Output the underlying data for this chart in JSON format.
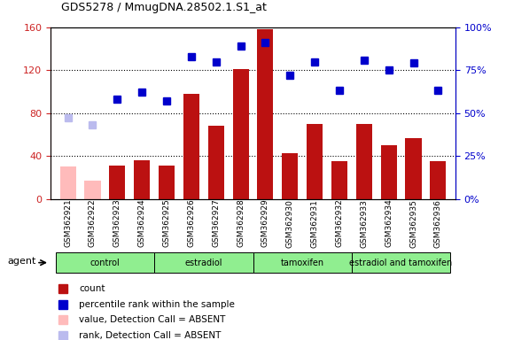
{
  "title": "GDS5278 / MmugDNA.28502.1.S1_at",
  "samples": [
    "GSM362921",
    "GSM362922",
    "GSM362923",
    "GSM362924",
    "GSM362925",
    "GSM362926",
    "GSM362927",
    "GSM362928",
    "GSM362929",
    "GSM362930",
    "GSM362931",
    "GSM362932",
    "GSM362933",
    "GSM362934",
    "GSM362935",
    "GSM362936"
  ],
  "count_values": [
    30,
    17,
    31,
    36,
    31,
    98,
    68,
    121,
    158,
    43,
    70,
    35,
    70,
    50,
    57,
    35
  ],
  "count_absent": [
    true,
    true,
    false,
    false,
    false,
    false,
    false,
    false,
    false,
    false,
    false,
    false,
    false,
    false,
    false,
    false
  ],
  "rank_values": [
    47,
    43,
    58,
    62,
    57,
    83,
    80,
    89,
    91,
    72,
    80,
    63,
    81,
    75,
    79,
    63
  ],
  "rank_absent": [
    true,
    true,
    false,
    false,
    false,
    false,
    false,
    false,
    false,
    false,
    false,
    false,
    false,
    false,
    false,
    false
  ],
  "group_labels": [
    "control",
    "estradiol",
    "tamoxifen",
    "estradiol and tamoxifen"
  ],
  "group_starts": [
    0,
    4,
    8,
    12
  ],
  "group_ends": [
    4,
    8,
    12,
    16
  ],
  "ylim_left": [
    0,
    160
  ],
  "ylim_right": [
    0,
    100
  ],
  "yticks_left": [
    0,
    40,
    80,
    120,
    160
  ],
  "ytick_labels_left": [
    "0",
    "40",
    "80",
    "120",
    "160"
  ],
  "yticks_right": [
    0,
    25,
    50,
    75,
    100
  ],
  "ytick_labels_right": [
    "0%",
    "25%",
    "50%",
    "75%",
    "100%"
  ],
  "bar_color_present": "#bb1111",
  "bar_color_absent": "#ffbbbb",
  "marker_color_present": "#0000cc",
  "marker_color_absent": "#bbbbee",
  "marker_size": 6,
  "group_color": "#90ee90",
  "agent_label": "agent",
  "legend_items": [
    {
      "label": "count",
      "color": "#bb1111"
    },
    {
      "label": "percentile rank within the sample",
      "color": "#0000cc"
    },
    {
      "label": "value, Detection Call = ABSENT",
      "color": "#ffbbbb"
    },
    {
      "label": "rank, Detection Call = ABSENT",
      "color": "#bbbbee"
    }
  ]
}
